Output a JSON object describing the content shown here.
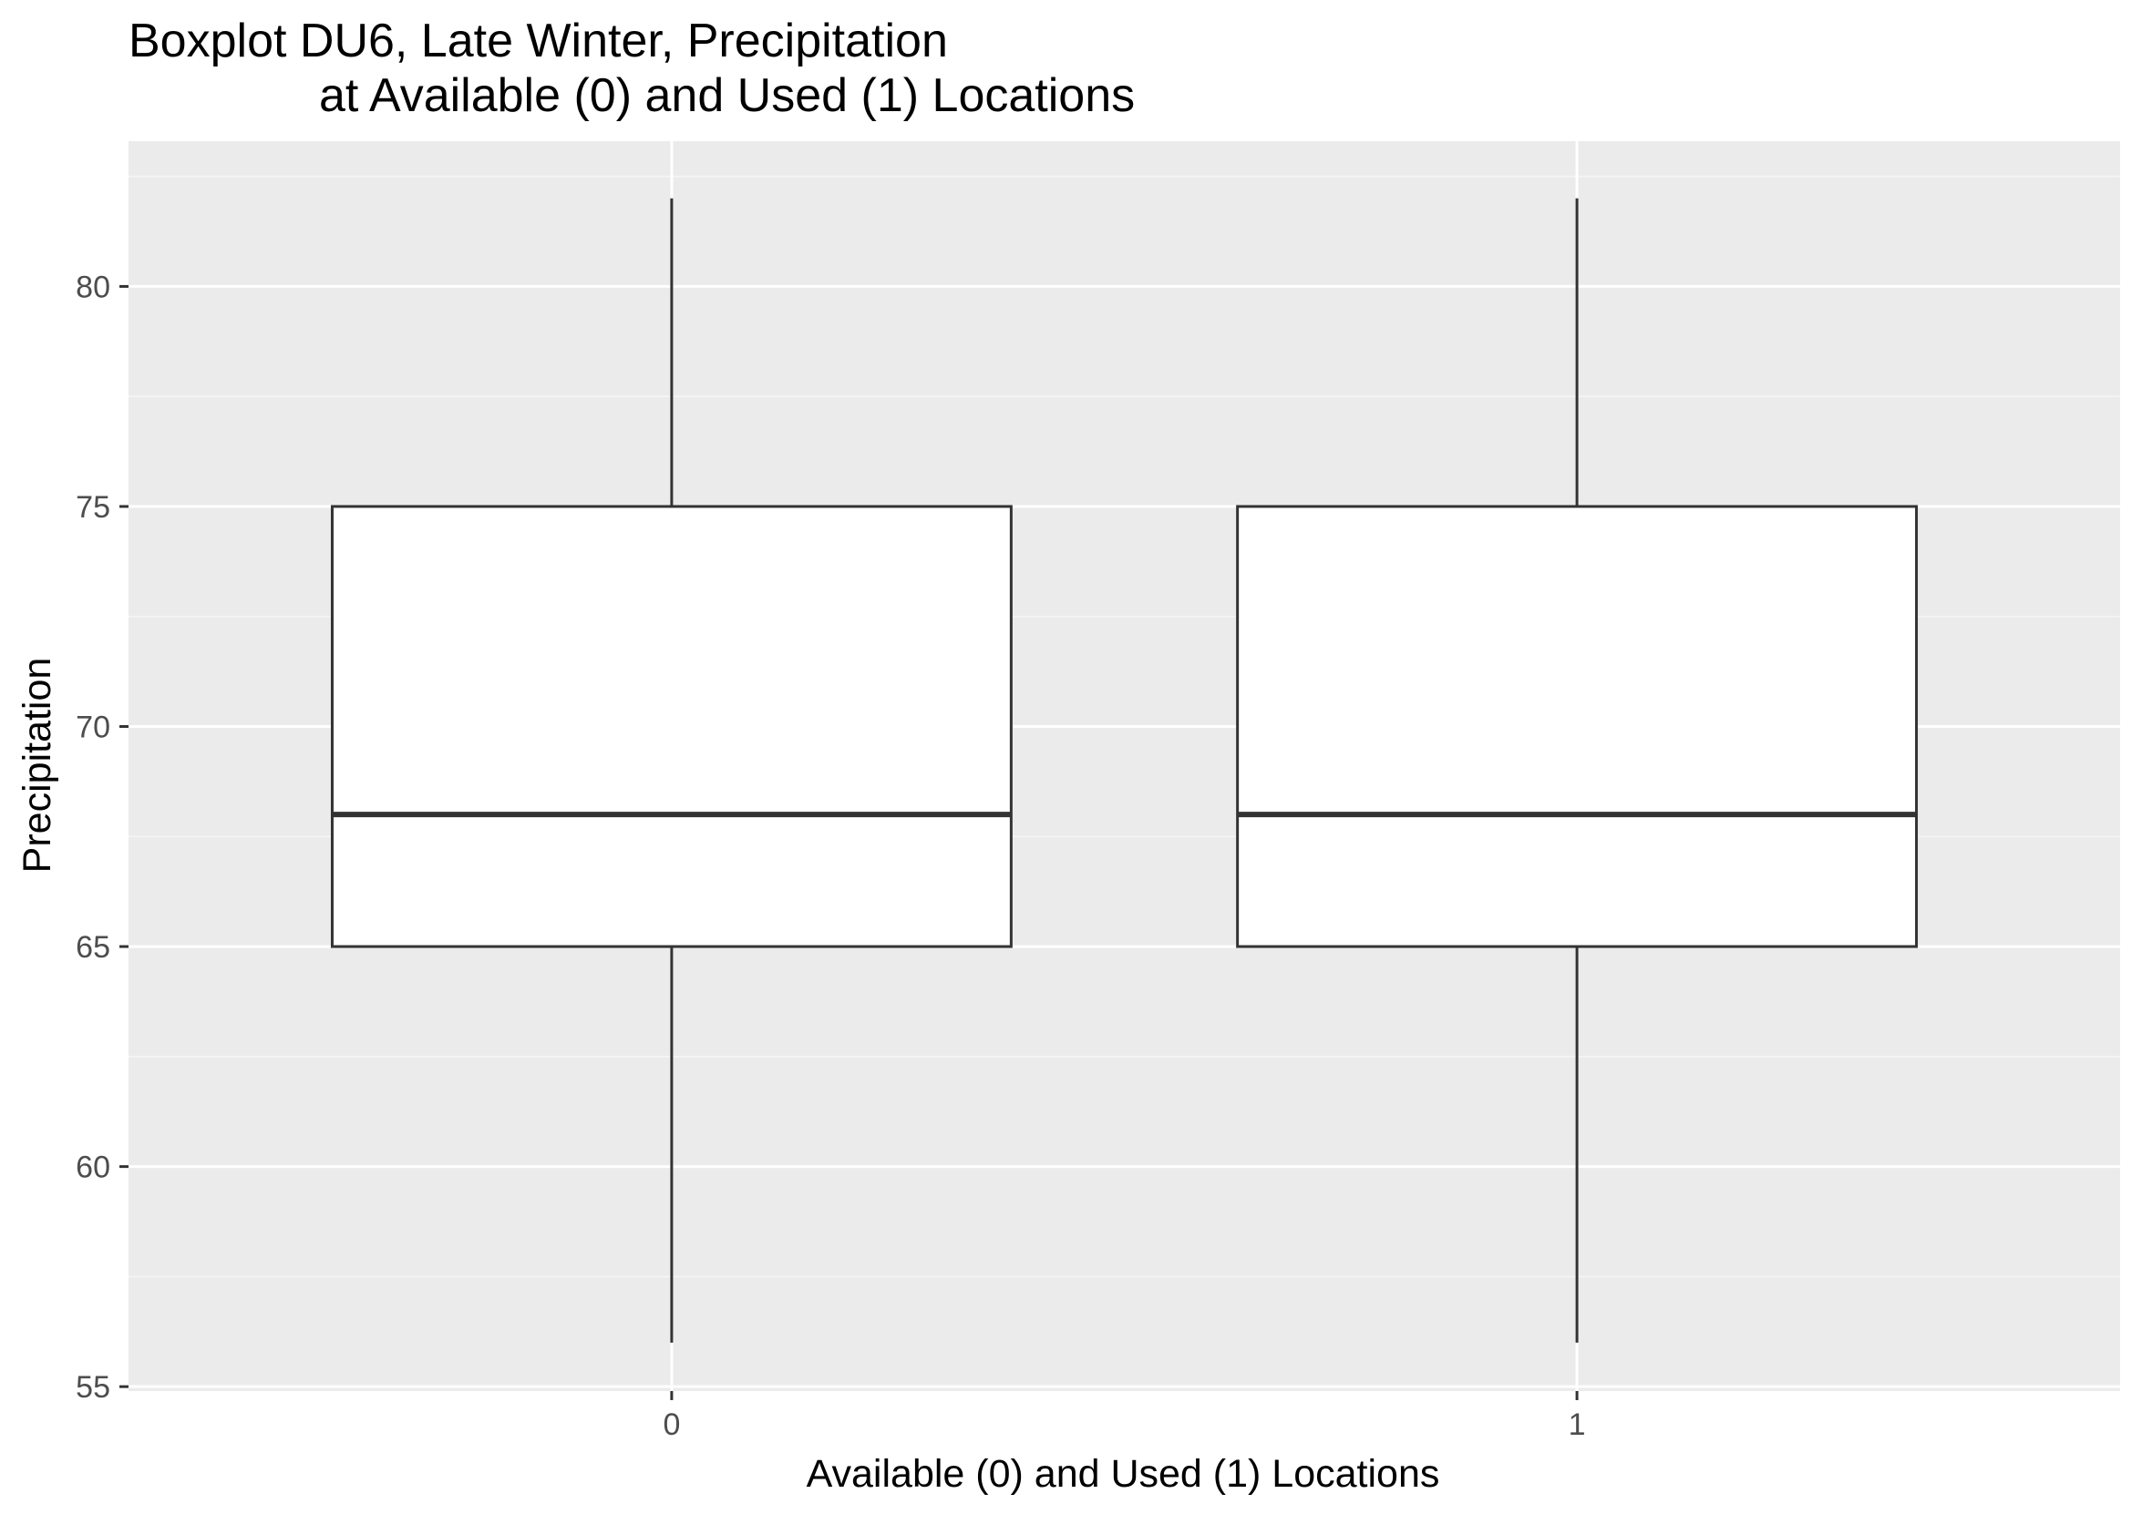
{
  "chart_data": {
    "type": "boxplot",
    "title_line1": "Boxplot DU6, Late Winter, Precipitation",
    "title_line2": "at Available (0) and Used (1) Locations",
    "xlabel": "Available (0) and Used (1) Locations",
    "ylabel": "Precipitation",
    "categories": [
      "0",
      "1"
    ],
    "y_ticks": [
      55,
      60,
      65,
      70,
      75,
      80
    ],
    "y_tick_labels": [
      "55",
      "60",
      "65",
      "70",
      "75",
      "80"
    ],
    "ylim": [
      54.9,
      83.3
    ],
    "boxes": [
      {
        "category": "0",
        "min": 56,
        "q1": 65,
        "median": 68,
        "q3": 75,
        "max": 82
      },
      {
        "category": "1",
        "min": 56,
        "q1": 65,
        "median": 68,
        "q3": 75,
        "max": 82
      }
    ],
    "grid": true,
    "colors": {
      "panel_background": "#ebebeb",
      "grid_major": "#ffffff",
      "grid_minor": "#f5f5f5",
      "box_fill": "#ffffff",
      "box_line": "#333333",
      "tick_text": "#4d4d4d",
      "tick_mark": "#333333",
      "text": "#000000"
    }
  }
}
